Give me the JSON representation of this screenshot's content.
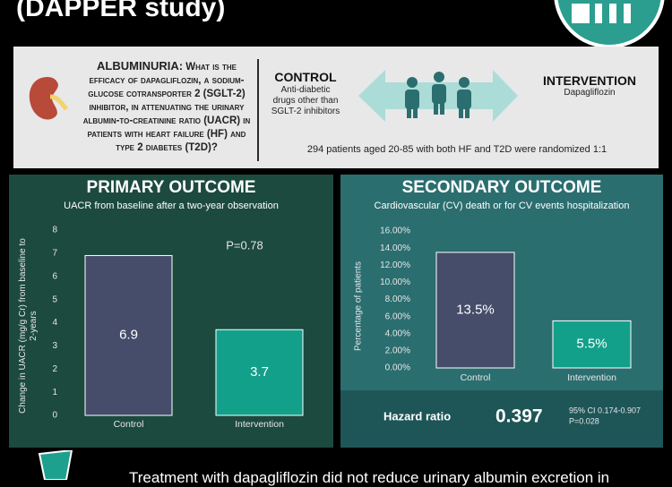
{
  "header": {
    "title": "(DAPPER study)"
  },
  "question": {
    "label": "ALBUMINURIA:",
    "text": "What is the efficacy of dapagliflozin, a sodium-glucose cotransporter 2 (SGLT-2) inhibitor, in attenuating the urinary albumin-to-creatinine ratio (UACR) in patients with heart failure (HF) and type 2 diabetes (T2D)?"
  },
  "arms": {
    "control": {
      "title": "CONTROL",
      "text": "Anti-diabetic drugs other than SGLT-2 inhibitors"
    },
    "intervention": {
      "title": "INTERVENTION",
      "text": "Dapagliflozin"
    }
  },
  "enrollment": "294 patients aged 20-85 with both HF and T2D were randomized 1:1",
  "chart_data": [
    {
      "type": "bar",
      "title": "PRIMARY OUTCOME",
      "subtitle": "UACR from baseline after a two-year observation",
      "y_label": "Change in UACR (mg/g Cr) from baseline to 2-years",
      "categories": [
        "Control",
        "Intervention"
      ],
      "values": [
        6.9,
        3.7
      ],
      "colors": [
        "#464d6a",
        "#13a08b"
      ],
      "ylim": [
        0,
        8
      ],
      "yticks": [
        0,
        1,
        2,
        3,
        4,
        5,
        6,
        7,
        8
      ],
      "grid": false,
      "annotation": "P=0.78"
    },
    {
      "type": "bar",
      "title": "SECONDARY OUTCOME",
      "subtitle": "Cardiovascular (CV) death or for CV events hospitalization",
      "y_label": "Percentage of patients",
      "categories": [
        "Control",
        "Intervention"
      ],
      "values": [
        13.5,
        5.5
      ],
      "value_labels": [
        "13.5%",
        "5.5%"
      ],
      "colors": [
        "#464d6a",
        "#13a08b"
      ],
      "ylim": [
        0,
        16
      ],
      "yticks": [
        {
          "value": 0,
          "label": "0.00%"
        },
        {
          "value": 2,
          "label": "2.00%"
        },
        {
          "value": 4,
          "label": "4.00%"
        },
        {
          "value": 6,
          "label": "6.00%"
        },
        {
          "value": 8,
          "label": "8.00%"
        },
        {
          "value": 10,
          "label": "10.00%"
        },
        {
          "value": 12,
          "label": "12.00%"
        },
        {
          "value": 14,
          "label": "14.00%"
        },
        {
          "value": 16,
          "label": "16.00%"
        }
      ],
      "grid": false
    }
  ],
  "hazard": {
    "label": "Hazard ratio",
    "value": 0.397,
    "ci": "95% CI 0.174-0.907",
    "p": "P=0.028"
  },
  "conclusion": "Treatment with dapagliflozin did not reduce urinary albumin excretion in"
}
